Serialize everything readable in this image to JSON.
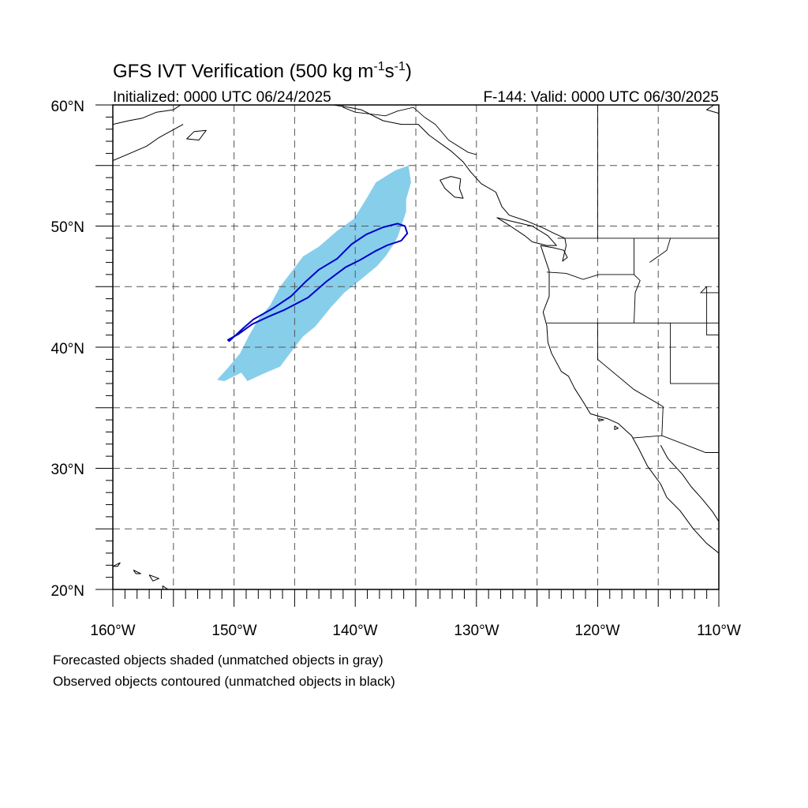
{
  "title": {
    "main": "GFS IVT Verification (500 kg m",
    "sup1": "-1",
    "mid": "s",
    "sup2": "-1",
    "end": ")"
  },
  "init_label": "Initialized: 0000 UTC 06/24/2025",
  "valid_label": "F-144: Valid: 0000 UTC 06/30/2025",
  "lat_labels": [
    "60°N",
    "50°N",
    "40°N",
    "30°N",
    "20°N"
  ],
  "lon_labels": [
    "160°W",
    "150°W",
    "140°W",
    "130°W",
    "120°W",
    "110°W"
  ],
  "notes": [
    "Forecasted objects shaded (unmatched objects in gray)",
    "Observed objects contoured (unmatched objects in black)"
  ],
  "colors": {
    "forecast_fill": "#87ceeb",
    "observed_contour": "#0000cc",
    "grid": "#555555"
  },
  "map_extent": {
    "lon": [
      -160,
      -110
    ],
    "lat": [
      20,
      60
    ],
    "grid_step_deg": 5
  },
  "forecast_object": [
    [
      -150.8,
      37.2
    ],
    [
      -149.4,
      37.9
    ],
    [
      -148.9,
      37.2
    ],
    [
      -147.6,
      37.8
    ],
    [
      -146.2,
      38.4
    ],
    [
      -145.3,
      39.6
    ],
    [
      -144.3,
      40.9
    ],
    [
      -143.3,
      41.7
    ],
    [
      -142.9,
      42.2
    ],
    [
      -142.0,
      43.3
    ],
    [
      -140.9,
      44.5
    ],
    [
      -139.4,
      45.7
    ],
    [
      -138.2,
      46.7
    ],
    [
      -137.5,
      47.5
    ],
    [
      -136.9,
      48.4
    ],
    [
      -136.5,
      49.1
    ],
    [
      -136.2,
      50.0
    ],
    [
      -135.8,
      51.2
    ],
    [
      -135.8,
      52.2
    ],
    [
      -135.4,
      53.6
    ],
    [
      -135.6,
      55.0
    ],
    [
      -136.7,
      54.6
    ],
    [
      -138.3,
      53.6
    ],
    [
      -139.0,
      52.4
    ],
    [
      -140.1,
      50.6
    ],
    [
      -141.5,
      49.6
    ],
    [
      -143.0,
      48.3
    ],
    [
      -144.3,
      47.5
    ],
    [
      -145.2,
      46.3
    ],
    [
      -146.2,
      45.0
    ],
    [
      -147.0,
      43.5
    ],
    [
      -148.0,
      42.3
    ],
    [
      -148.8,
      40.9
    ],
    [
      -149.5,
      39.5
    ],
    [
      -150.5,
      38.3
    ],
    [
      -151.4,
      37.3
    ]
  ],
  "observed_object": [
    [
      -150.4,
      40.5
    ],
    [
      -149.2,
      41.6
    ],
    [
      -148.4,
      42.3
    ],
    [
      -146.8,
      43.2
    ],
    [
      -145.3,
      44.2
    ],
    [
      -144.1,
      45.4
    ],
    [
      -143.0,
      46.4
    ],
    [
      -141.5,
      47.3
    ],
    [
      -140.3,
      48.5
    ],
    [
      -139.1,
      49.3
    ],
    [
      -137.7,
      49.9
    ],
    [
      -136.5,
      50.2
    ],
    [
      -135.9,
      50.0
    ],
    [
      -135.7,
      49.4
    ],
    [
      -136.2,
      48.8
    ],
    [
      -137.4,
      48.4
    ],
    [
      -138.4,
      47.9
    ],
    [
      -139.6,
      47.2
    ],
    [
      -140.8,
      46.6
    ],
    [
      -142.4,
      45.4
    ],
    [
      -143.9,
      44.1
    ],
    [
      -145.8,
      43.1
    ],
    [
      -147.2,
      42.5
    ],
    [
      -148.5,
      41.9
    ],
    [
      -149.6,
      41.1
    ],
    [
      -150.5,
      40.6
    ]
  ],
  "coastlines": [
    [
      [
        -124.7,
        48.4
      ],
      [
        -124.0,
        46.3
      ],
      [
        -124.0,
        44.2
      ],
      [
        -124.5,
        42.9
      ],
      [
        -124.2,
        41.8
      ],
      [
        -124.1,
        40.4
      ],
      [
        -123.8,
        39.5
      ],
      [
        -123.0,
        38.0
      ],
      [
        -122.4,
        37.6
      ],
      [
        -121.9,
        36.6
      ],
      [
        -121.2,
        35.5
      ],
      [
        -120.6,
        34.5
      ],
      [
        -119.2,
        34.1
      ],
      [
        -118.3,
        33.7
      ],
      [
        -117.2,
        32.7
      ],
      [
        -116.6,
        31.6
      ],
      [
        -115.9,
        30.2
      ],
      [
        -114.8,
        28.7
      ],
      [
        -114.3,
        27.6
      ],
      [
        -113.2,
        26.5
      ],
      [
        -112.1,
        25.0
      ],
      [
        -111.0,
        23.8
      ],
      [
        -110.0,
        23.0
      ]
    ],
    [
      [
        -124.7,
        48.4
      ],
      [
        -123.6,
        48.2
      ],
      [
        -122.8,
        48.0
      ],
      [
        -122.5,
        47.4
      ],
      [
        -122.9,
        47.1
      ],
      [
        -122.6,
        48.4
      ],
      [
        -122.7,
        49.0
      ],
      [
        -123.6,
        49.4
      ],
      [
        -124.4,
        49.8
      ],
      [
        -125.8,
        50.4
      ],
      [
        -127.3,
        50.9
      ],
      [
        -127.9,
        51.6
      ],
      [
        -128.4,
        52.8
      ],
      [
        -129.6,
        53.5
      ],
      [
        -130.5,
        54.5
      ],
      [
        -131.1,
        55.3
      ],
      [
        -132.1,
        56.2
      ],
      [
        -133.9,
        57.5
      ],
      [
        -134.8,
        58.4
      ],
      [
        -136.2,
        58.4
      ],
      [
        -137.7,
        58.7
      ],
      [
        -139.5,
        59.6
      ],
      [
        -140.5,
        59.8
      ],
      [
        -141.8,
        60.0
      ]
    ],
    [
      [
        -125.4,
        48.7
      ],
      [
        -124.2,
        48.4
      ],
      [
        -123.4,
        48.4
      ],
      [
        -124.1,
        49.2
      ],
      [
        -125.4,
        50.0
      ],
      [
        -127.1,
        50.4
      ],
      [
        -128.3,
        50.7
      ],
      [
        -127.2,
        50.0
      ],
      [
        -126.0,
        49.2
      ],
      [
        -125.4,
        48.7
      ]
    ],
    [
      [
        -131.3,
        53.9
      ],
      [
        -132.1,
        54.1
      ],
      [
        -133.0,
        53.8
      ],
      [
        -132.6,
        53.1
      ],
      [
        -131.8,
        52.4
      ],
      [
        -131.1,
        52.3
      ],
      [
        -131.4,
        53.1
      ],
      [
        -131.3,
        53.9
      ]
    ],
    [
      [
        -114.8,
        31.9
      ],
      [
        -114.2,
        30.8
      ],
      [
        -113.0,
        29.5
      ],
      [
        -112.3,
        28.5
      ],
      [
        -111.4,
        27.5
      ],
      [
        -110.5,
        26.4
      ],
      [
        -110.0,
        25.6
      ]
    ],
    [
      [
        -160.0,
        58.4
      ],
      [
        -158.7,
        58.7
      ],
      [
        -157.6,
        58.9
      ],
      [
        -156.4,
        59.4
      ],
      [
        -155.0,
        59.6
      ],
      [
        -154.4,
        60.0
      ]
    ],
    [
      [
        -160.0,
        55.4
      ],
      [
        -158.6,
        56.0
      ],
      [
        -157.2,
        56.6
      ],
      [
        -156.2,
        57.3
      ],
      [
        -155.3,
        57.8
      ],
      [
        -154.2,
        58.4
      ]
    ],
    [
      [
        -153.3,
        57.8
      ],
      [
        -152.3,
        57.9
      ],
      [
        -152.9,
        57.1
      ],
      [
        -153.9,
        57.2
      ],
      [
        -153.3,
        57.8
      ]
    ],
    [
      [
        -110.0,
        59.3
      ],
      [
        -111.0,
        59.6
      ],
      [
        -110.4,
        60.0
      ]
    ],
    [
      [
        -160.0,
        21.9
      ],
      [
        -159.4,
        22.2
      ],
      [
        -159.6,
        21.9
      ],
      [
        -160.0,
        21.9
      ]
    ],
    [
      [
        -158.3,
        21.6
      ],
      [
        -157.7,
        21.3
      ],
      [
        -158.1,
        21.3
      ],
      [
        -158.3,
        21.6
      ]
    ],
    [
      [
        -157.0,
        21.2
      ],
      [
        -156.2,
        20.9
      ],
      [
        -156.7,
        20.7
      ],
      [
        -157.0,
        21.2
      ]
    ],
    [
      [
        -155.9,
        20.3
      ],
      [
        -155.0,
        19.7
      ],
      [
        -155.7,
        19.0
      ],
      [
        -155.9,
        20.3
      ]
    ],
    [
      [
        -118.6,
        33.5
      ],
      [
        -118.3,
        33.3
      ],
      [
        -118.6,
        33.2
      ],
      [
        -118.6,
        33.5
      ]
    ],
    [
      [
        -119.9,
        34.1
      ],
      [
        -119.5,
        34.0
      ],
      [
        -119.9,
        33.9
      ],
      [
        -119.9,
        34.1
      ]
    ]
  ],
  "borders": [
    [
      [
        -123.3,
        49.0
      ],
      [
        -110.0,
        49.0
      ]
    ],
    [
      [
        -124.2,
        46.2
      ],
      [
        -122.6,
        46.1
      ],
      [
        -121.2,
        45.6
      ],
      [
        -119.9,
        46.0
      ],
      [
        -118.9,
        46.0
      ],
      [
        -117.0,
        46.0
      ],
      [
        -117.0,
        47.8
      ],
      [
        -117.0,
        49.0
      ]
    ],
    [
      [
        -124.2,
        42.0
      ],
      [
        -110.0,
        42.0
      ]
    ],
    [
      [
        -120.0,
        42.0
      ],
      [
        -120.0,
        39.0
      ],
      [
        -117.0,
        36.5
      ],
      [
        -114.6,
        35.1
      ],
      [
        -114.7,
        32.7
      ]
    ],
    [
      [
        -117.1,
        32.5
      ],
      [
        -114.7,
        32.7
      ],
      [
        -111.1,
        31.3
      ],
      [
        -110.0,
        31.3
      ]
    ],
    [
      [
        -117.0,
        46.0
      ],
      [
        -116.5,
        45.5
      ],
      [
        -116.9,
        44.5
      ],
      [
        -117.0,
        42.0
      ]
    ],
    [
      [
        -114.0,
        42.0
      ],
      [
        -114.0,
        37.0
      ],
      [
        -110.0,
        37.0
      ]
    ],
    [
      [
        -111.0,
        45.0
      ],
      [
        -111.0,
        41.0
      ],
      [
        -110.0,
        41.0
      ]
    ],
    [
      [
        -111.0,
        45.0
      ],
      [
        -111.5,
        44.5
      ],
      [
        -110.0,
        44.5
      ]
    ],
    [
      [
        -114.0,
        49.0
      ],
      [
        -114.3,
        48.0
      ],
      [
        -115.0,
        47.5
      ],
      [
        -115.7,
        47.0
      ]
    ],
    [
      [
        -141.0,
        60.0
      ],
      [
        -141.0,
        59.8
      ],
      [
        -140.0,
        59.4
      ],
      [
        -137.5,
        59.1
      ],
      [
        -136.5,
        59.5
      ],
      [
        -135.2,
        59.8
      ],
      [
        -134.3,
        59.0
      ],
      [
        -133.4,
        58.4
      ],
      [
        -132.3,
        57.1
      ],
      [
        -130.7,
        56.1
      ],
      [
        -130.0,
        55.9
      ]
    ],
    [
      [
        -120.0,
        60.0
      ],
      [
        -120.0,
        49.0
      ]
    ]
  ]
}
